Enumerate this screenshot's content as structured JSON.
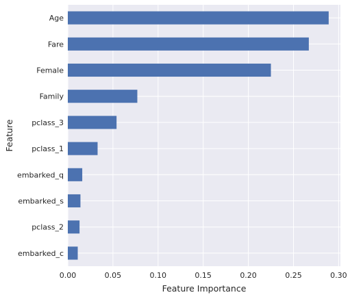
{
  "chart_data": {
    "type": "bar",
    "orientation": "horizontal",
    "categories": [
      "Age",
      "Fare",
      "Female",
      "Family",
      "pclass_3",
      "pclass_1",
      "embarked_q",
      "embarked_s",
      "pclass_2",
      "embarked_c"
    ],
    "values": [
      0.289,
      0.267,
      0.225,
      0.077,
      0.054,
      0.033,
      0.016,
      0.014,
      0.013,
      0.011
    ],
    "xlabel": "Feature Importance",
    "ylabel": "Feature",
    "xlim": [
      0,
      0.302
    ],
    "xticks": [
      0.0,
      0.05,
      0.1,
      0.15,
      0.2,
      0.25,
      0.3
    ],
    "xtick_labels": [
      "0.00",
      "0.05",
      "0.10",
      "0.15",
      "0.20",
      "0.25",
      "0.30"
    ],
    "grid": true,
    "legend": false,
    "colors": {
      "bar": "#4c72b0",
      "plot_background": "#eaeaf2",
      "grid": "#ffffff",
      "text": "#262626"
    }
  }
}
